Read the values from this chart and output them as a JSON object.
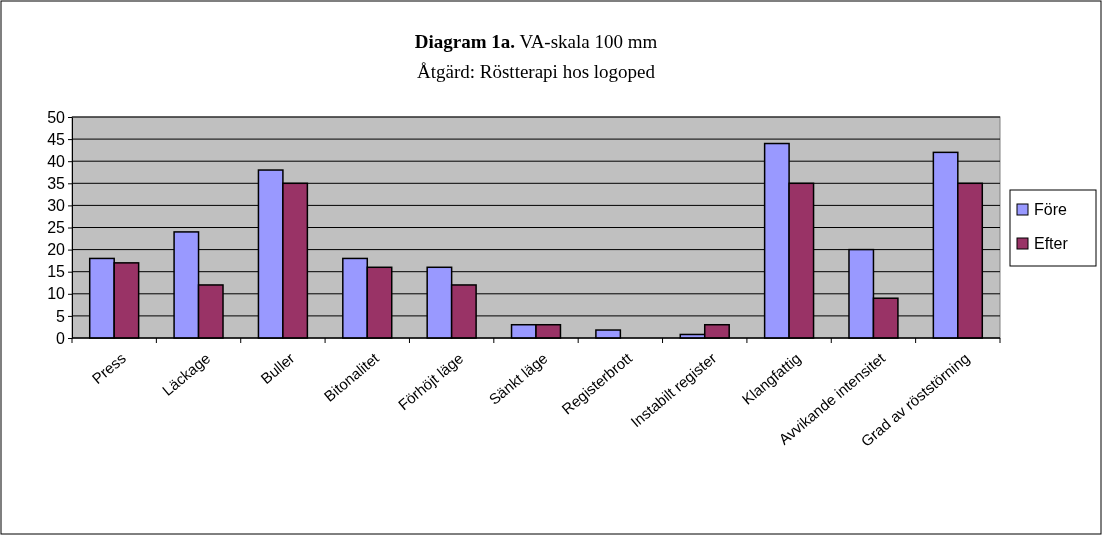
{
  "chart_data": {
    "type": "bar",
    "title": "Diagram 1a. VA-skala 100 mm",
    "subtitle": "Åtgärd: Röstterapi hos logoped",
    "categories": [
      "Press",
      "Läckage",
      "Buller",
      "Bitonalitet",
      "Förhöjt läge",
      "Sänkt läge",
      "Registerbrott",
      "Instabilt register",
      "Klangfattig",
      "Avvikande intensitet",
      "Grad av röststörning"
    ],
    "series": [
      {
        "name": "Före",
        "color": "#9999ff",
        "values": [
          18,
          24,
          38,
          18,
          16,
          3,
          1.8,
          0.8,
          44,
          20,
          42
        ]
      },
      {
        "name": "Efter",
        "color": "#993366",
        "values": [
          17,
          12,
          35,
          16,
          12,
          3,
          0,
          3,
          35,
          9,
          35
        ]
      }
    ],
    "ylim": [
      0,
      50
    ],
    "yticks": [
      0,
      5,
      10,
      15,
      20,
      25,
      30,
      35,
      40,
      45,
      50
    ],
    "grid": "y",
    "legend": "right"
  }
}
